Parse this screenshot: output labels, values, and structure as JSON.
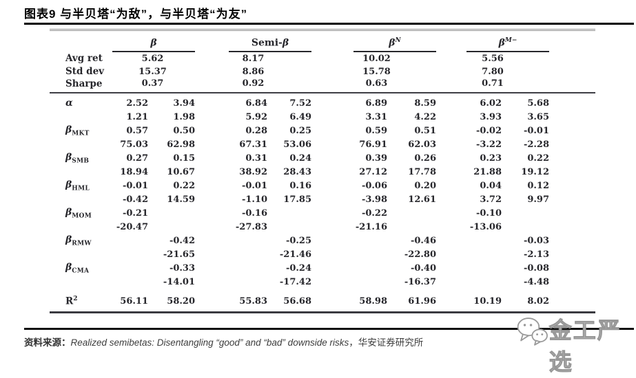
{
  "title": "图表9 与半贝塔“为敌”，与半贝塔“为友”",
  "table": {
    "groups": [
      {
        "pre": "",
        "main": "β",
        "sup": ""
      },
      {
        "pre": "Semi-",
        "main": "β",
        "sup": ""
      },
      {
        "pre": "",
        "main": "β",
        "sup": "N"
      },
      {
        "pre": "",
        "main": "β",
        "sup": "M−"
      }
    ],
    "summary_rows": [
      {
        "label": "Avg ret",
        "values": [
          "5.62",
          "8.17",
          "10.02",
          "5.56"
        ]
      },
      {
        "label": "Std dev",
        "values": [
          "15.37",
          "8.86",
          "15.78",
          "7.80"
        ]
      },
      {
        "label": "Sharpe",
        "values": [
          "0.37",
          "0.92",
          "0.63",
          "0.71"
        ]
      }
    ],
    "coef_rows": [
      {
        "label_main": "α",
        "label_sub": "",
        "coef": [
          "2.52",
          "3.94",
          "6.84",
          "7.52",
          "6.89",
          "8.59",
          "6.02",
          "5.68"
        ],
        "tstat": [
          "1.21",
          "1.98",
          "5.92",
          "6.49",
          "3.31",
          "4.22",
          "3.93",
          "3.65"
        ]
      },
      {
        "label_main": "β",
        "label_sub": "MKT",
        "coef": [
          "0.57",
          "0.50",
          "0.28",
          "0.25",
          "0.59",
          "0.51",
          "-0.02",
          "-0.01"
        ],
        "tstat": [
          "75.03",
          "62.98",
          "67.31",
          "53.06",
          "76.91",
          "62.03",
          "-3.22",
          "-2.28"
        ]
      },
      {
        "label_main": "β",
        "label_sub": "SMB",
        "coef": [
          "0.27",
          "0.15",
          "0.31",
          "0.24",
          "0.39",
          "0.26",
          "0.23",
          "0.22"
        ],
        "tstat": [
          "18.94",
          "10.67",
          "38.92",
          "28.43",
          "27.12",
          "17.78",
          "21.88",
          "19.12"
        ]
      },
      {
        "label_main": "β",
        "label_sub": "HML",
        "coef": [
          "-0.01",
          "0.22",
          "-0.01",
          "0.16",
          "-0.06",
          "0.20",
          "0.04",
          "0.12"
        ],
        "tstat": [
          "-0.42",
          "14.59",
          "-1.10",
          "17.85",
          "-3.98",
          "12.61",
          "3.72",
          "9.97"
        ]
      },
      {
        "label_main": "β",
        "label_sub": "MOM",
        "coef": [
          "-0.21",
          "",
          "-0.16",
          "",
          "-0.22",
          "",
          "-0.10",
          ""
        ],
        "tstat": [
          "-20.47",
          "",
          "-27.83",
          "",
          "-21.16",
          "",
          "-13.06",
          ""
        ]
      },
      {
        "label_main": "β",
        "label_sub": "RMW",
        "coef": [
          "",
          "-0.42",
          "",
          "-0.25",
          "",
          "-0.46",
          "",
          "-0.03"
        ],
        "tstat": [
          "",
          "-21.65",
          "",
          "-21.46",
          "",
          "-22.80",
          "",
          "-2.13"
        ]
      },
      {
        "label_main": "β",
        "label_sub": "CMA",
        "coef": [
          "",
          "-0.33",
          "",
          "-0.24",
          "",
          "-0.40",
          "",
          "-0.08"
        ],
        "tstat": [
          "",
          "-14.01",
          "",
          "-17.42",
          "",
          "-16.37",
          "",
          "-4.48"
        ]
      }
    ],
    "r2_row": {
      "label_main": "R",
      "label_sup": "2",
      "values": [
        "56.11",
        "58.20",
        "55.83",
        "56.68",
        "58.98",
        "61.96",
        "10.19",
        "8.02"
      ]
    }
  },
  "footer": {
    "source_label": "资料来源：",
    "source_ref": "Realized semibetas: Disentangling “good” and “bad” downside risks",
    "source_suffix": "，华安证券研究所"
  },
  "watermark": {
    "text": "金工严选"
  },
  "colors": {
    "text_dark": "#26262b",
    "rule_gray": "#8d8d8d",
    "rule_dark": "#3a3a40",
    "watermark_gray": "#c6c6c6"
  }
}
